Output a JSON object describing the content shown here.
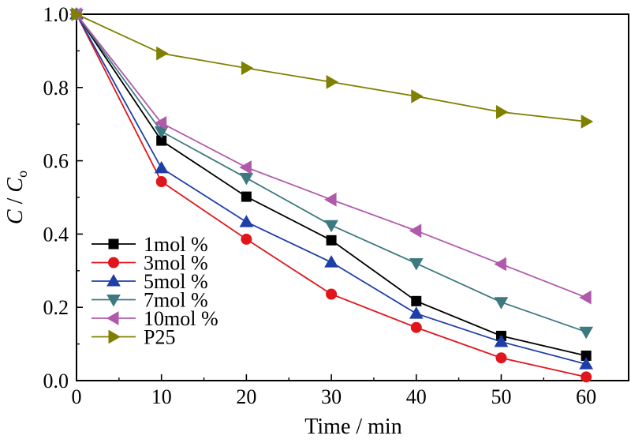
{
  "chart_data": {
    "type": "line",
    "xlabel": "Time / min",
    "ylabel_parts": [
      "C",
      " / ",
      "C",
      "o"
    ],
    "x": [
      0,
      10,
      20,
      30,
      40,
      50,
      60
    ],
    "xlim": [
      0,
      65
    ],
    "ylim": [
      0,
      1.0
    ],
    "xticks": [
      "0",
      "10",
      "20",
      "30",
      "40",
      "50",
      "60"
    ],
    "yticks": [
      "0.0",
      "0.2",
      "0.4",
      "0.6",
      "0.8",
      "1.0"
    ],
    "grid": false,
    "legend_position": "lower-left",
    "series": [
      {
        "name": "1mol %",
        "color": "#000000",
        "marker": "square",
        "values": [
          1.0,
          0.655,
          0.502,
          0.383,
          0.217,
          0.122,
          0.068
        ]
      },
      {
        "name": "3mol %",
        "color": "#e0161c",
        "marker": "circle",
        "values": [
          1.0,
          0.543,
          0.386,
          0.236,
          0.145,
          0.062,
          0.01
        ]
      },
      {
        "name": "5mol %",
        "color": "#1f3fa8",
        "marker": "triangle-up",
        "values": [
          1.0,
          0.58,
          0.433,
          0.323,
          0.183,
          0.106,
          0.045
        ]
      },
      {
        "name": "7mol %",
        "color": "#3c7a80",
        "marker": "triangle-down",
        "values": [
          1.0,
          0.68,
          0.553,
          0.424,
          0.32,
          0.214,
          0.133
        ]
      },
      {
        "name": "10mol %",
        "color": "#b05aab",
        "marker": "triangle-left",
        "values": [
          1.0,
          0.703,
          0.582,
          0.494,
          0.409,
          0.318,
          0.227
        ]
      },
      {
        "name": "P25",
        "color": "#808000",
        "marker": "triangle-right",
        "values": [
          1.0,
          0.893,
          0.853,
          0.815,
          0.776,
          0.733,
          0.707
        ]
      }
    ]
  }
}
